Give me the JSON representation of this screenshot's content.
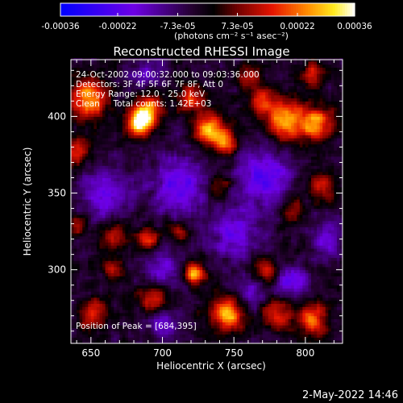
{
  "chart_data": {
    "type": "heatmap",
    "title": "Reconstructed RHESSI Image",
    "xlabel": "Heliocentric X (arcsec)",
    "ylabel": "Heliocentric Y (arcsec)",
    "xlim": [
      636,
      826
    ],
    "ylim": [
      252,
      437
    ],
    "x_ticks": [
      650,
      700,
      750,
      800
    ],
    "y_ticks": [
      300,
      350,
      400
    ],
    "colorbar": {
      "min": -0.00036,
      "max": 0.00036,
      "tick_values": [
        -0.00036,
        -0.00022,
        -7.3e-05,
        7.3e-05,
        0.00022,
        0.00036
      ],
      "tick_labels": [
        "-0.00036",
        "-0.00022",
        "-7.3e-05",
        "7.3e-05",
        "0.00022",
        "0.00036"
      ],
      "units_label": "(photons cm⁻² s⁻¹ asec⁻²)"
    },
    "annotations": [
      "24-Oct-2002 09:00:32.000 to 09:03:36.000",
      "Detectors: 3F 4F 5F 6F 7F 8F, Att 0",
      "Energy Range: 12.0 - 25.0 keV",
      "Clean     Total counts: 1.42E+03"
    ],
    "peak_label": "Position of Peak = [684,395]",
    "sources": [
      {
        "x": 684,
        "y": 395,
        "amp": 1.0,
        "r": 6
      },
      {
        "x": 690,
        "y": 405,
        "amp": 0.8,
        "r": 7
      },
      {
        "x": 648,
        "y": 412,
        "amp": 0.8,
        "r": 9
      },
      {
        "x": 640,
        "y": 378,
        "amp": 0.55,
        "r": 7
      },
      {
        "x": 732,
        "y": 392,
        "amp": 0.9,
        "r": 7
      },
      {
        "x": 744,
        "y": 384,
        "amp": 0.7,
        "r": 6
      },
      {
        "x": 720,
        "y": 412,
        "amp": 0.6,
        "r": 6
      },
      {
        "x": 786,
        "y": 398,
        "amp": 0.85,
        "r": 9
      },
      {
        "x": 808,
        "y": 395,
        "amp": 0.8,
        "r": 8
      },
      {
        "x": 770,
        "y": 410,
        "amp": 0.55,
        "r": 6
      },
      {
        "x": 805,
        "y": 428,
        "amp": 0.5,
        "r": 6
      },
      {
        "x": 812,
        "y": 355,
        "amp": 0.5,
        "r": 7
      },
      {
        "x": 790,
        "y": 340,
        "amp": 0.4,
        "r": 6
      },
      {
        "x": 740,
        "y": 355,
        "amp": 0.4,
        "r": 6
      },
      {
        "x": 666,
        "y": 322,
        "amp": 0.45,
        "r": 7
      },
      {
        "x": 690,
        "y": 320,
        "amp": 0.5,
        "r": 6
      },
      {
        "x": 712,
        "y": 325,
        "amp": 0.4,
        "r": 5
      },
      {
        "x": 722,
        "y": 298,
        "amp": 0.9,
        "r": 5
      },
      {
        "x": 665,
        "y": 300,
        "amp": 0.4,
        "r": 5
      },
      {
        "x": 694,
        "y": 282,
        "amp": 0.6,
        "r": 7
      },
      {
        "x": 746,
        "y": 272,
        "amp": 0.9,
        "r": 8
      },
      {
        "x": 780,
        "y": 272,
        "amp": 0.6,
        "r": 7
      },
      {
        "x": 805,
        "y": 268,
        "amp": 0.65,
        "r": 8
      },
      {
        "x": 772,
        "y": 300,
        "amp": 0.5,
        "r": 6
      },
      {
        "x": 652,
        "y": 272,
        "amp": 0.5,
        "r": 7
      },
      {
        "x": 642,
        "y": 330,
        "amp": 0.4,
        "r": 5
      },
      {
        "x": 760,
        "y": 425,
        "amp": 0.45,
        "r": 6
      }
    ],
    "negatives": [
      {
        "x": 770,
        "y": 360,
        "amp": 0.55,
        "r": 14
      },
      {
        "x": 712,
        "y": 355,
        "amp": 0.5,
        "r": 14
      },
      {
        "x": 660,
        "y": 350,
        "amp": 0.45,
        "r": 12
      },
      {
        "x": 700,
        "y": 300,
        "amp": 0.4,
        "r": 10
      },
      {
        "x": 750,
        "y": 322,
        "amp": 0.45,
        "r": 12
      },
      {
        "x": 690,
        "y": 428,
        "amp": 0.35,
        "r": 8
      },
      {
        "x": 790,
        "y": 292,
        "amp": 0.5,
        "r": 8
      },
      {
        "x": 700,
        "y": 265,
        "amp": 0.35,
        "r": 9
      },
      {
        "x": 815,
        "y": 320,
        "amp": 0.4,
        "r": 8
      },
      {
        "x": 760,
        "y": 285,
        "amp": 0.35,
        "r": 8
      }
    ]
  },
  "footer": {
    "timestamp": "2-May-2022 14:46"
  }
}
